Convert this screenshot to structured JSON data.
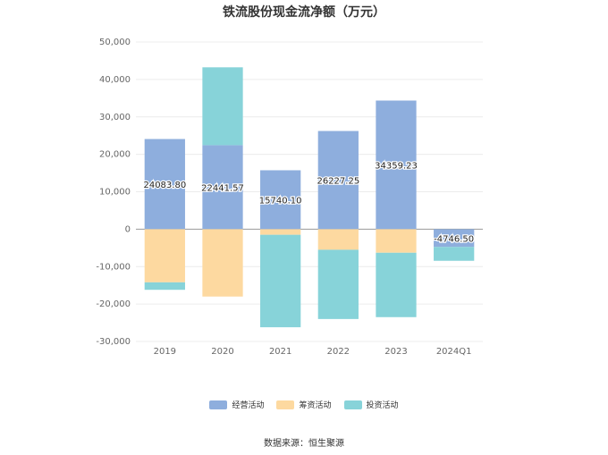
{
  "title": "铁流股份现金流净额（万元）",
  "source": "数据来源：恒生聚源",
  "colors": {
    "operating": "#8eaedd",
    "financing": "#fdd9a0",
    "investing": "#87d3d9",
    "grid": "#ececec",
    "axis": "#999999"
  },
  "chart_data": {
    "type": "bar",
    "stacked": true,
    "categories": [
      "2019",
      "2020",
      "2021",
      "2022",
      "2023",
      "2024Q1"
    ],
    "series": [
      {
        "name": "经营活动",
        "key": "operating",
        "values": [
          24083.8,
          22441.57,
          15740.1,
          26227.25,
          34359.23,
          -4746.5
        ]
      },
      {
        "name": "筹资活动",
        "key": "financing",
        "values": [
          -14200,
          -18000,
          -1500,
          -5500,
          -6300,
          0
        ]
      },
      {
        "name": "投资活动",
        "key": "investing",
        "values": [
          -2000,
          20800,
          -24700,
          -18500,
          -17200,
          -3700
        ]
      }
    ],
    "data_labels": [
      "24083.80",
      "22441.57",
      "15740.10",
      "26227.25",
      "34359.23",
      "-4746.50"
    ],
    "ylim": [
      -30000,
      50000
    ],
    "yticks": [
      50000,
      40000,
      30000,
      20000,
      10000,
      0,
      -10000,
      -20000,
      -30000
    ],
    "ytick_labels": [
      "50,000",
      "40,000",
      "30,000",
      "20,000",
      "10,000",
      "0",
      "-10,000",
      "-20,000",
      "-30,000"
    ],
    "grid": true,
    "legend_position": "bottom"
  }
}
